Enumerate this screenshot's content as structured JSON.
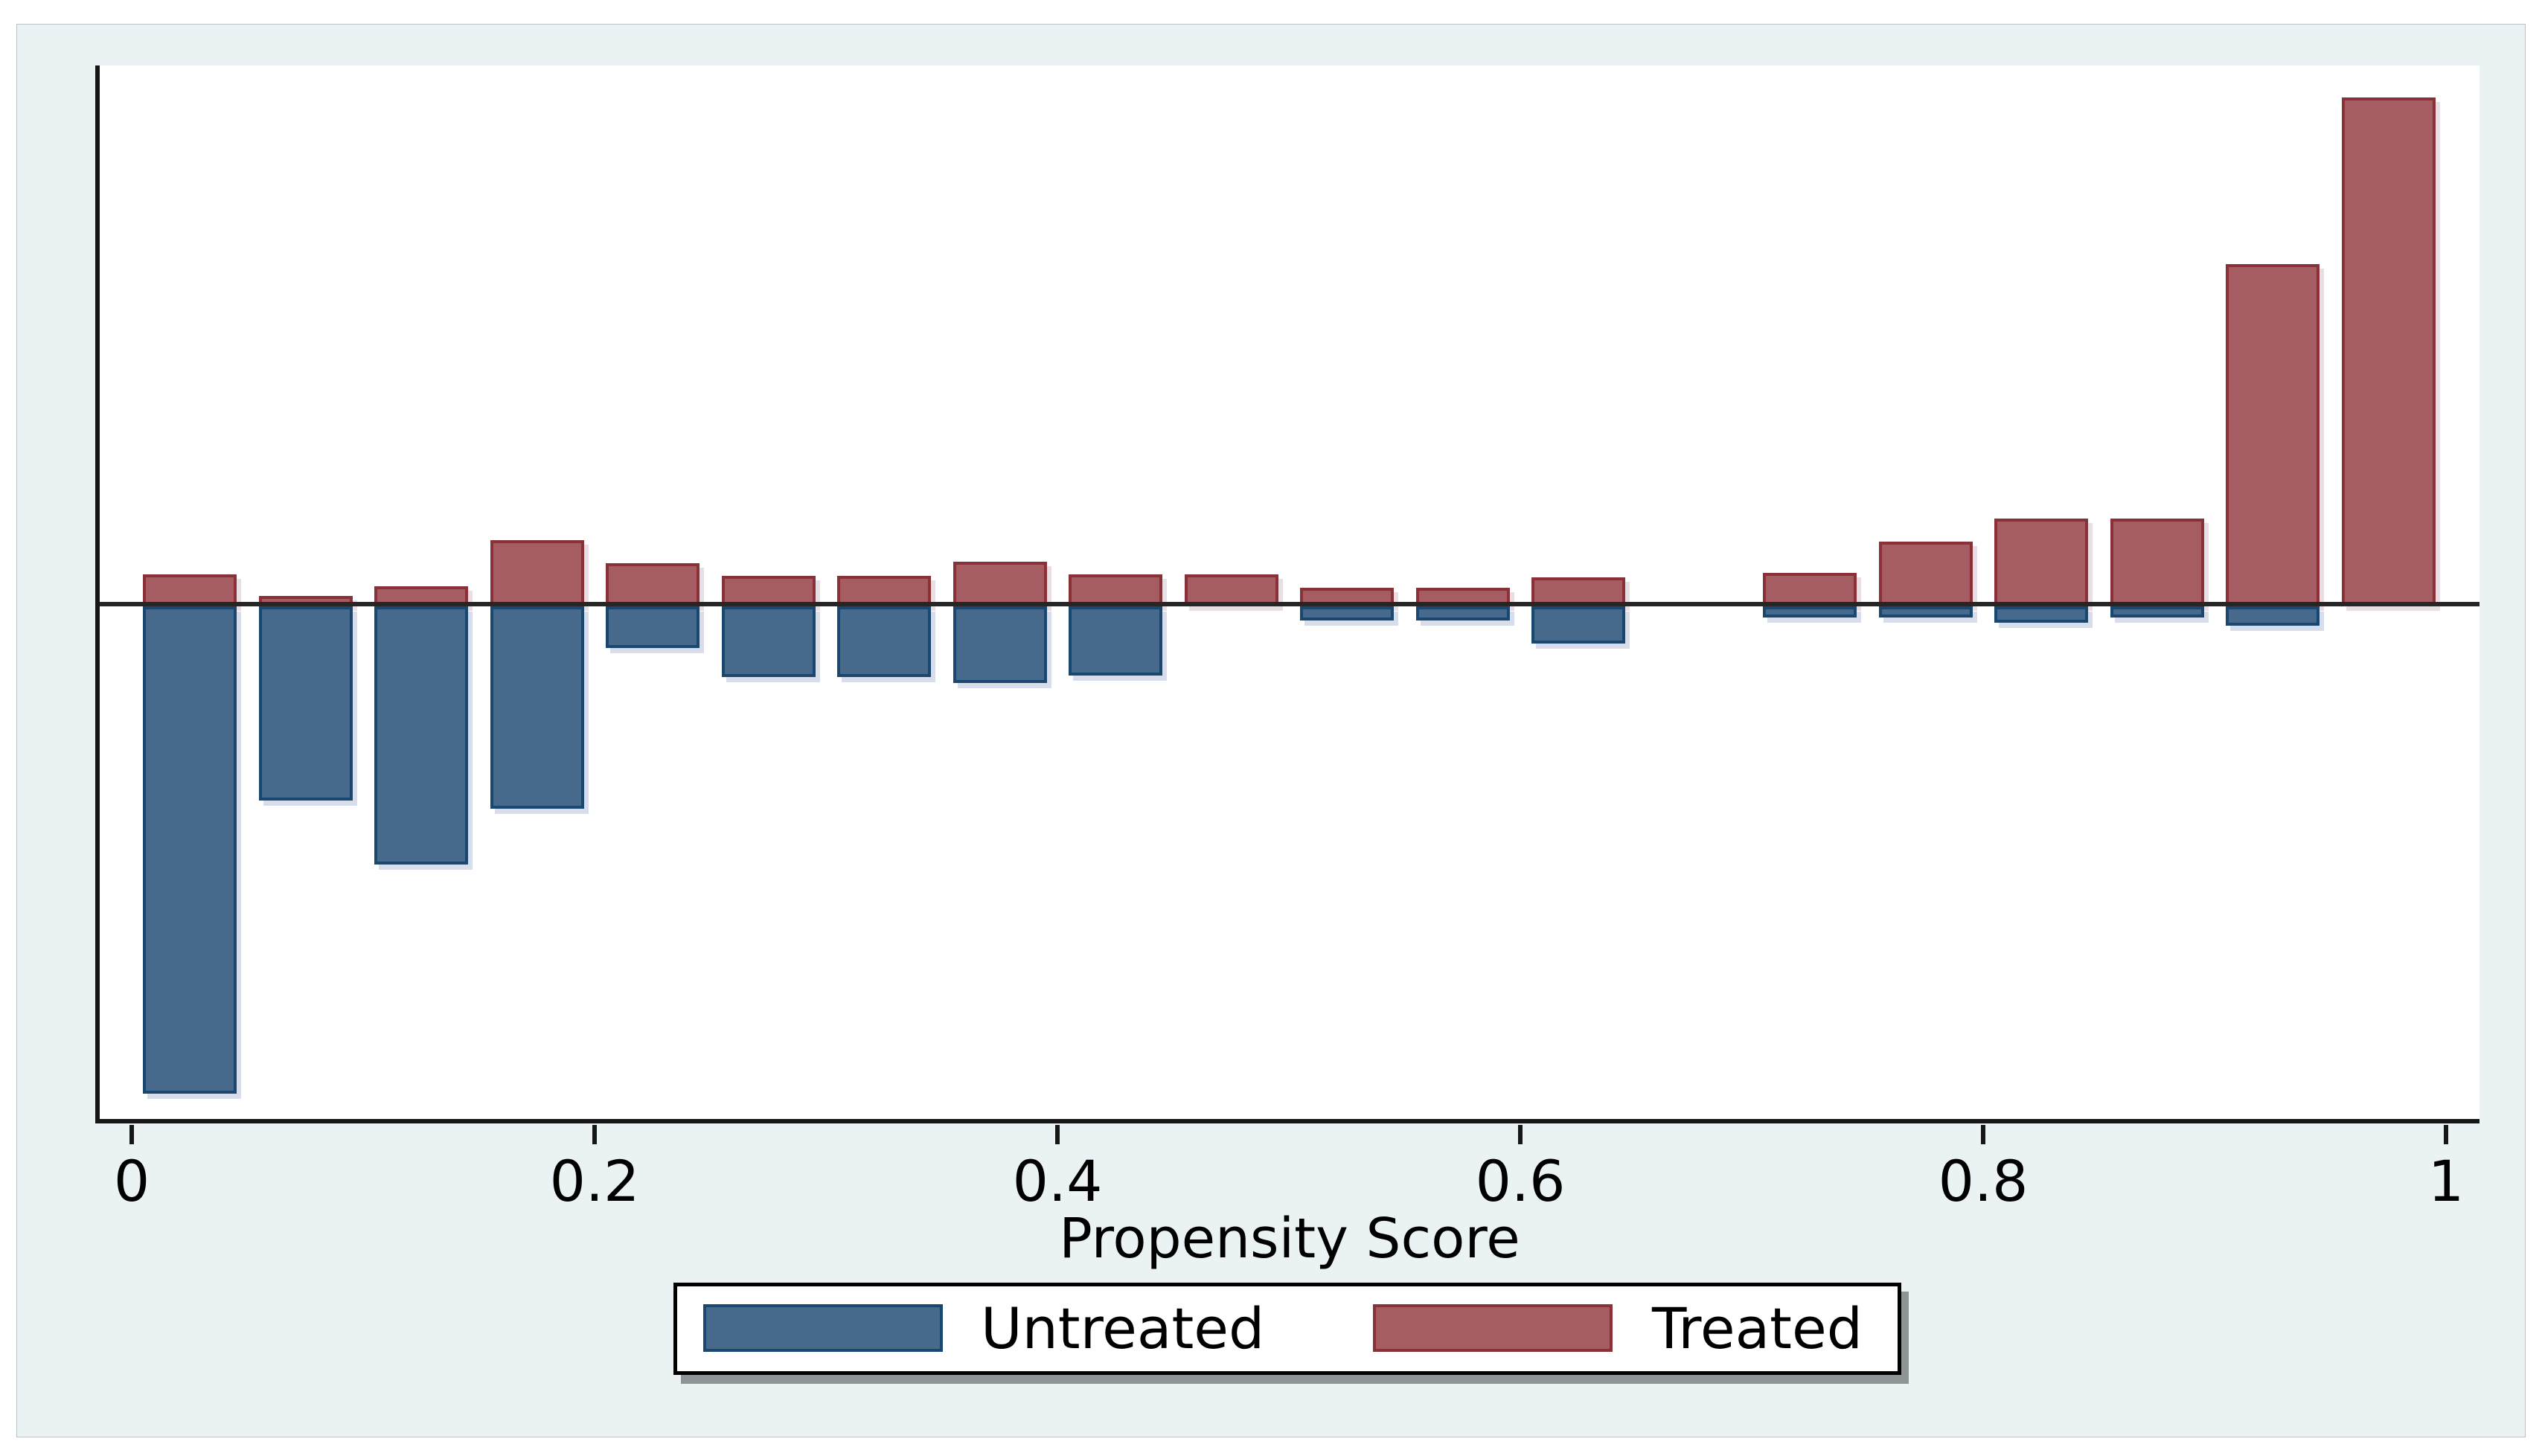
{
  "figure": {
    "title": "",
    "background_color": "#eaf2f3",
    "plot_background_color": "#ffffff",
    "axis_color": "#161616",
    "zero_line_color": "#262626"
  },
  "x_axis": {
    "label": "Propensity Score",
    "ticks": [
      {
        "value": 0,
        "label": "0"
      },
      {
        "value": 0.2,
        "label": "0.2"
      },
      {
        "value": 0.4,
        "label": "0.4"
      },
      {
        "value": 0.6,
        "label": "0.6"
      },
      {
        "value": 0.8,
        "label": "0.8"
      },
      {
        "value": 1,
        "label": "1"
      }
    ]
  },
  "legend": {
    "items": [
      {
        "label": "Untreated",
        "color": "#46698c",
        "border_color": "#1a476f"
      },
      {
        "label": "Treated",
        "color": "#a55c62",
        "border_color": "#8a3137"
      }
    ]
  },
  "chart_data": {
    "type": "bar",
    "variant": "diverging_propensity_histogram",
    "title": "",
    "xlabel": "Propensity Score",
    "ylabel": "",
    "x_range": [
      0,
      1
    ],
    "bin_width": 0.05,
    "bin_starts": [
      0,
      0.05,
      0.1,
      0.15,
      0.2,
      0.25,
      0.3,
      0.35,
      0.4,
      0.45,
      0.5,
      0.55,
      0.6,
      0.65,
      0.7,
      0.75,
      0.8,
      0.85,
      0.9,
      0.95
    ],
    "y_units": "fraction of group (estimated; treated drawn upward, untreated downward)",
    "grid": false,
    "legend_position": "bottom-center",
    "series": [
      {
        "name": "Treated",
        "direction": "up",
        "color": "#a55c62",
        "border_color": "#8a3137",
        "values": [
          0.021,
          0.007,
          0.013,
          0.043,
          0.028,
          0.02,
          0.02,
          0.029,
          0.021,
          0.021,
          0.012,
          0.012,
          0.019,
          0,
          0.022,
          0.042,
          0.057,
          0.057,
          0.223,
          0.331
        ]
      },
      {
        "name": "Untreated",
        "direction": "down",
        "color": "#46698c",
        "border_color": "#1a476f",
        "values": [
          0.304,
          0.121,
          0.161,
          0.126,
          0.026,
          0.044,
          0.044,
          0.048,
          0.043,
          0,
          0.009,
          0.009,
          0.023,
          0,
          0.007,
          0.007,
          0.01,
          0.007,
          0.012,
          0
        ]
      }
    ]
  }
}
